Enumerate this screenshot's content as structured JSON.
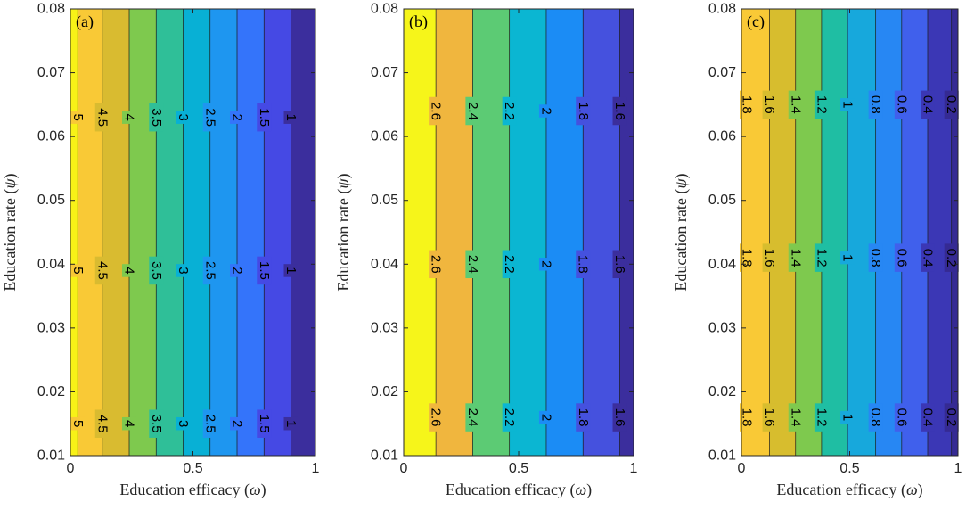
{
  "chart_data": [
    {
      "type": "contour",
      "panel_label": "(a)",
      "xlabel": "Education efficacy",
      "xsymbol": "ω",
      "ylabel": "Education rate",
      "ysymbol": "ψ",
      "xlim": [
        0,
        1
      ],
      "ylim": [
        0.01,
        0.08
      ],
      "x_ticks": [
        "0",
        "0.5",
        "1"
      ],
      "y_ticks": [
        "0.01",
        "0.02",
        "0.03",
        "0.04",
        "0.05",
        "0.06",
        "0.07",
        "0.08"
      ],
      "bands": [
        {
          "x_from": 0.0,
          "x_to": 0.03,
          "color": "#f8f217"
        },
        {
          "x_from": 0.03,
          "x_to": 0.13,
          "color": "#f9c936"
        },
        {
          "x_from": 0.13,
          "x_to": 0.24,
          "color": "#d9bb30"
        },
        {
          "x_from": 0.24,
          "x_to": 0.35,
          "color": "#7ec94e"
        },
        {
          "x_from": 0.35,
          "x_to": 0.46,
          "color": "#2fbf98"
        },
        {
          "x_from": 0.46,
          "x_to": 0.57,
          "color": "#08b0d5"
        },
        {
          "x_from": 0.57,
          "x_to": 0.68,
          "color": "#1e96f0"
        },
        {
          "x_from": 0.68,
          "x_to": 0.79,
          "color": "#3474fa"
        },
        {
          "x_from": 0.79,
          "x_to": 0.9,
          "color": "#4549e4"
        },
        {
          "x_from": 0.9,
          "x_to": 1.0,
          "color": "#3b2e9d"
        }
      ],
      "contours": [
        {
          "x": 0.03,
          "label": "5"
        },
        {
          "x": 0.13,
          "label": "4.5"
        },
        {
          "x": 0.24,
          "label": "4"
        },
        {
          "x": 0.35,
          "label": "3.5"
        },
        {
          "x": 0.46,
          "label": "3"
        },
        {
          "x": 0.57,
          "label": "2.5"
        },
        {
          "x": 0.68,
          "label": "2"
        },
        {
          "x": 0.79,
          "label": "1.5"
        },
        {
          "x": 0.9,
          "label": "1"
        }
      ],
      "label_rows_y": [
        0.063,
        0.039,
        0.015
      ]
    },
    {
      "type": "contour",
      "panel_label": "(b)",
      "xlabel": "Education efficacy",
      "xsymbol": "ω",
      "ylabel": "Education rate",
      "ysymbol": "ψ",
      "xlim": [
        0,
        1
      ],
      "ylim": [
        0.01,
        0.08
      ],
      "x_ticks": [
        "0",
        "0.5",
        "1"
      ],
      "y_ticks": [
        "0.01",
        "0.02",
        "0.03",
        "0.04",
        "0.05",
        "0.06",
        "0.07",
        "0.08"
      ],
      "bands": [
        {
          "x_from": 0.0,
          "x_to": 0.14,
          "color": "#f6f51a"
        },
        {
          "x_from": 0.14,
          "x_to": 0.3,
          "color": "#f0b63e"
        },
        {
          "x_from": 0.3,
          "x_to": 0.46,
          "color": "#5ccb74"
        },
        {
          "x_from": 0.46,
          "x_to": 0.62,
          "color": "#0bb6d2"
        },
        {
          "x_from": 0.62,
          "x_to": 0.78,
          "color": "#1b8cf5"
        },
        {
          "x_from": 0.78,
          "x_to": 0.94,
          "color": "#4551de"
        },
        {
          "x_from": 0.94,
          "x_to": 1.0,
          "color": "#3b2e9d"
        }
      ],
      "contours": [
        {
          "x": 0.14,
          "label": "2.6"
        },
        {
          "x": 0.3,
          "label": "2.4"
        },
        {
          "x": 0.46,
          "label": "2.2"
        },
        {
          "x": 0.62,
          "label": "2"
        },
        {
          "x": 0.78,
          "label": "1.8"
        },
        {
          "x": 0.94,
          "label": "1.6"
        }
      ],
      "label_rows_y": [
        0.064,
        0.04,
        0.016
      ]
    },
    {
      "type": "contour",
      "panel_label": "(c)",
      "xlabel": "Education efficacy",
      "xsymbol": "ω",
      "ylabel": "Education rate",
      "ysymbol": "ψ",
      "xlim": [
        0,
        1
      ],
      "ylim": [
        0.01,
        0.08
      ],
      "x_ticks": [
        "0",
        "0.5",
        "1"
      ],
      "y_ticks": [
        "0.01",
        "0.02",
        "0.03",
        "0.04",
        "0.05",
        "0.06",
        "0.07",
        "0.08"
      ],
      "bands": [
        {
          "x_from": 0.0,
          "x_to": 0.0,
          "color": "#f9c936"
        },
        {
          "x_from": 0.0,
          "x_to": 0.13,
          "color": "#f9c936"
        },
        {
          "x_from": 0.13,
          "x_to": 0.25,
          "color": "#d7bd2e"
        },
        {
          "x_from": 0.25,
          "x_to": 0.37,
          "color": "#7ec94e"
        },
        {
          "x_from": 0.37,
          "x_to": 0.49,
          "color": "#1fbea3"
        },
        {
          "x_from": 0.49,
          "x_to": 0.62,
          "color": "#17a8dc"
        },
        {
          "x_from": 0.62,
          "x_to": 0.74,
          "color": "#2787f3"
        },
        {
          "x_from": 0.74,
          "x_to": 0.86,
          "color": "#4060ec"
        },
        {
          "x_from": 0.86,
          "x_to": 0.97,
          "color": "#3b37b5"
        },
        {
          "x_from": 0.97,
          "x_to": 1.0,
          "color": "#352a93"
        }
      ],
      "contours": [
        {
          "x": 0.0,
          "label": "1.8"
        },
        {
          "x": 0.13,
          "label": "1.6"
        },
        {
          "x": 0.25,
          "label": "1.4"
        },
        {
          "x": 0.37,
          "label": "1.2"
        },
        {
          "x": 0.49,
          "label": "1"
        },
        {
          "x": 0.62,
          "label": "0.8"
        },
        {
          "x": 0.74,
          "label": "0.6"
        },
        {
          "x": 0.86,
          "label": "0.4"
        },
        {
          "x": 0.97,
          "label": "0.2"
        }
      ],
      "label_rows_y": [
        0.065,
        0.041,
        0.016
      ]
    }
  ]
}
